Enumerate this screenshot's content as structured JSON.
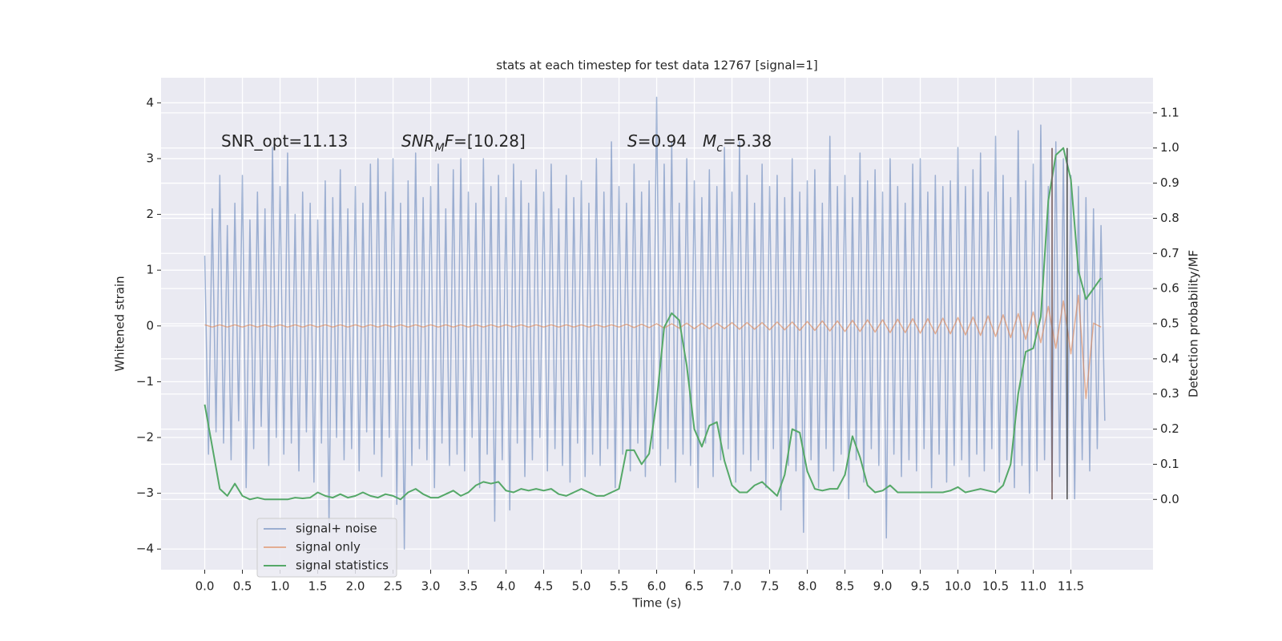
{
  "chart_data": {
    "type": "line",
    "title": "stats at each timestep for test data 12767 [signal=1]",
    "xlabel": "Time (s)",
    "ylabel": "Whitened strain",
    "y2label": "Detection probability/MF",
    "xlim": [
      -0.58,
      12.59
    ],
    "ylim": [
      -4.37,
      4.45
    ],
    "y2lim": [
      -0.2,
      1.2
    ],
    "xticks": [
      {
        "value": 0,
        "label": "0.0"
      },
      0.5,
      {
        "value": 1,
        "label": "1.0"
      },
      1.5,
      {
        "value": 2,
        "label": "2.0"
      },
      2.5,
      {
        "value": 3,
        "label": "3.0"
      },
      3.5,
      {
        "value": 4,
        "label": "4.0"
      },
      4.5,
      {
        "value": 5,
        "label": "5.0"
      },
      5.5,
      {
        "value": 6,
        "label": "6.0"
      },
      6.5,
      {
        "value": 7,
        "label": "7.0"
      },
      7.5,
      {
        "value": 8,
        "label": "8.0"
      },
      8.5,
      {
        "value": 9,
        "label": "9.0"
      },
      9.5,
      {
        "value": 10,
        "label": "10.0"
      },
      10.5,
      {
        "value": 11,
        "label": "11.0"
      },
      11.5
    ],
    "yticks": [
      {
        "value": -4,
        "label": "−4"
      },
      {
        "value": -3,
        "label": "−3"
      },
      {
        "value": -2,
        "label": "−2"
      },
      {
        "value": -1,
        "label": "−1"
      },
      0,
      1,
      2,
      3,
      4
    ],
    "y2ticks": [
      {
        "value": 0,
        "label": "0.0"
      },
      0.1,
      0.2,
      0.3,
      0.4,
      0.5,
      0.6,
      0.7,
      0.8,
      0.9,
      {
        "value": 1,
        "label": "1.0"
      },
      1.1
    ],
    "grid": true,
    "legend": "lower left",
    "annotations": [
      {
        "parts": [
          {
            "t": "SNR_opt=11.13"
          }
        ]
      },
      {
        "parts": [
          {
            "t": "SNR",
            "s": "i"
          },
          {
            "t": "M",
            "s": "sub"
          },
          {
            "t": "F",
            "s": "i"
          },
          {
            "t": "=[10.28]"
          }
        ]
      },
      {
        "parts": [
          {
            "t": "S",
            "s": "i"
          },
          {
            "t": "=0.94"
          }
        ]
      },
      {
        "parts": [
          {
            "t": "M",
            "s": "i"
          },
          {
            "t": "c",
            "s": "sub"
          },
          {
            "t": "=5.38"
          }
        ]
      }
    ],
    "vlines": {
      "x": [
        11.25,
        11.45
      ],
      "ymin": 0,
      "ymax": 1.0,
      "colors": [
        "#7a5f5f",
        "#555555"
      ]
    },
    "series": [
      {
        "name": "signal+ noise",
        "color": "#4c72b0",
        "opacity": 0.5,
        "x": [
          0,
          0.05,
          0.1,
          0.15,
          0.2,
          0.25,
          0.3,
          0.35,
          0.4,
          0.45,
          0.5,
          0.55,
          0.6,
          0.65,
          0.7,
          0.75,
          0.8,
          0.85,
          0.9,
          0.95,
          1,
          1.05,
          1.1,
          1.15,
          1.2,
          1.25,
          1.3,
          1.35,
          1.4,
          1.45,
          1.5,
          1.55,
          1.6,
          1.65,
          1.7,
          1.75,
          1.8,
          1.85,
          1.9,
          1.95,
          2,
          2.05,
          2.1,
          2.15,
          2.2,
          2.25,
          2.3,
          2.35,
          2.4,
          2.45,
          2.5,
          2.55,
          2.6,
          2.65,
          2.7,
          2.75,
          2.8,
          2.85,
          2.9,
          2.95,
          3,
          3.05,
          3.1,
          3.15,
          3.2,
          3.25,
          3.3,
          3.35,
          3.4,
          3.45,
          3.5,
          3.55,
          3.6,
          3.65,
          3.7,
          3.75,
          3.8,
          3.85,
          3.9,
          3.95,
          4,
          4.05,
          4.1,
          4.15,
          4.2,
          4.25,
          4.3,
          4.35,
          4.4,
          4.45,
          4.5,
          4.55,
          4.6,
          4.65,
          4.7,
          4.75,
          4.8,
          4.85,
          4.9,
          4.95,
          5,
          5.05,
          5.1,
          5.15,
          5.2,
          5.25,
          5.3,
          5.35,
          5.4,
          5.45,
          5.5,
          5.55,
          5.6,
          5.65,
          5.7,
          5.75,
          5.8,
          5.85,
          5.9,
          5.95,
          6,
          6.05,
          6.1,
          6.15,
          6.2,
          6.25,
          6.3,
          6.35,
          6.4,
          6.45,
          6.5,
          6.55,
          6.6,
          6.65,
          6.7,
          6.75,
          6.8,
          6.85,
          6.9,
          6.95,
          7,
          7.05,
          7.1,
          7.15,
          7.2,
          7.25,
          7.3,
          7.35,
          7.4,
          7.45,
          7.5,
          7.55,
          7.6,
          7.65,
          7.7,
          7.75,
          7.8,
          7.85,
          7.9,
          7.95,
          8,
          8.05,
          8.1,
          8.15,
          8.2,
          8.25,
          8.3,
          8.35,
          8.4,
          8.45,
          8.5,
          8.55,
          8.6,
          8.65,
          8.7,
          8.75,
          8.8,
          8.85,
          8.9,
          8.95,
          9,
          9.05,
          9.1,
          9.15,
          9.2,
          9.25,
          9.3,
          9.35,
          9.4,
          9.45,
          9.5,
          9.55,
          9.6,
          9.65,
          9.7,
          9.75,
          9.8,
          9.85,
          9.9,
          9.95,
          10,
          10.05,
          10.1,
          10.15,
          10.2,
          10.25,
          10.3,
          10.35,
          10.4,
          10.45,
          10.5,
          10.55,
          10.6,
          10.65,
          10.7,
          10.75,
          10.8,
          10.85,
          10.9,
          10.95,
          11,
          11.05,
          11.1,
          11.15,
          11.2,
          11.25,
          11.3,
          11.35,
          11.4,
          11.45,
          11.5,
          11.55,
          11.6,
          11.65,
          11.7,
          11.75,
          11.8,
          11.85,
          11.9,
          11.95
        ],
        "values": [
          1.26,
          -2.3,
          2.1,
          -1.9,
          2.7,
          -2.1,
          1.8,
          -2.4,
          2.2,
          -1.7,
          2.7,
          -2.9,
          1.9,
          -2.2,
          2.4,
          -1.8,
          2.1,
          -2.5,
          3.2,
          -2.0,
          2.5,
          -2.3,
          3.1,
          -2.1,
          2.0,
          -2.6,
          2.4,
          -1.9,
          2.2,
          -2.8,
          1.9,
          -2.1,
          2.6,
          -3.6,
          2.3,
          -2.0,
          2.8,
          -2.4,
          2.1,
          -2.2,
          2.5,
          -2.6,
          2.2,
          -1.9,
          2.9,
          -2.3,
          3.0,
          -2.7,
          2.4,
          -2.0,
          3.0,
          -3.2,
          2.2,
          -4.0,
          2.6,
          -2.5,
          3.1,
          -2.2,
          2.3,
          -2.4,
          2.5,
          -2.9,
          2.9,
          -2.1,
          2.1,
          -2.5,
          2.8,
          -2.3,
          3.0,
          -2.6,
          2.4,
          -2.0,
          2.2,
          -2.9,
          3.0,
          -2.3,
          2.5,
          -3.5,
          2.7,
          -2.4,
          2.3,
          -3.3,
          2.9,
          -2.1,
          2.6,
          -2.7,
          2.2,
          -2.4,
          2.8,
          -2.0,
          2.4,
          -2.6,
          2.9,
          -2.2,
          2.1,
          -2.5,
          2.7,
          -2.8,
          2.3,
          -2.1,
          2.6,
          -2.7,
          2.2,
          -2.3,
          3.0,
          -2.5,
          2.4,
          -2.2,
          3.3,
          -2.9,
          2.5,
          -2.3,
          2.2,
          -2.6,
          2.9,
          -2.1,
          2.4,
          -2.7,
          2.6,
          -2.2,
          4.1,
          -2.5,
          2.9,
          -2.2,
          3.3,
          -2.8,
          2.2,
          -2.3,
          3.0,
          -2.5,
          2.6,
          -2.9,
          2.3,
          -2.1,
          2.8,
          -2.7,
          2.5,
          -2.4,
          3.2,
          -2.2,
          2.4,
          -2.8,
          3.3,
          -2.3,
          2.7,
          -2.6,
          2.2,
          -2.4,
          2.9,
          -2.9,
          2.5,
          -2.2,
          2.7,
          -3.3,
          2.3,
          -2.5,
          3.0,
          -2.6,
          2.4,
          -3.7,
          2.6,
          -2.4,
          2.8,
          -2.9,
          2.2,
          -2.2,
          3.4,
          -2.6,
          2.5,
          -2.3,
          2.7,
          -3.1,
          2.3,
          -2.4,
          3.1,
          -2.8,
          2.6,
          -2.2,
          2.8,
          -2.5,
          2.4,
          -3.8,
          3.0,
          -2.3,
          2.5,
          -2.7,
          2.2,
          -2.4,
          2.9,
          -2.6,
          3.0,
          -2.2,
          2.4,
          -2.9,
          2.7,
          -2.3,
          2.5,
          -2.8,
          2.6,
          -2.5,
          3.2,
          -2.4,
          2.5,
          -2.7,
          2.8,
          -2.3,
          3.1,
          -2.6,
          2.4,
          -2.2,
          3.4,
          -2.8,
          2.7,
          -2.4,
          2.3,
          -2.9,
          3.5,
          -2.5,
          2.6,
          -3.0,
          2.9,
          -2.6,
          3.6,
          -2.4,
          2.5,
          -2.8,
          3.3,
          -2.7,
          3.0,
          -3.0,
          2.7,
          -3.1,
          2.5,
          -2.4,
          2.3,
          -2.6,
          2.1,
          -2.2,
          1.8,
          -1.7
        ]
      },
      {
        "name": "signal only",
        "color": "#dd8452",
        "opacity": 0.6,
        "x": [
          0,
          0.1,
          0.2,
          0.3,
          0.4,
          0.5,
          0.6,
          0.7,
          0.8,
          0.9,
          1,
          1.1,
          1.2,
          1.3,
          1.4,
          1.5,
          1.6,
          1.7,
          1.8,
          1.9,
          2,
          2.1,
          2.2,
          2.3,
          2.4,
          2.5,
          2.6,
          2.7,
          2.8,
          2.9,
          3,
          3.1,
          3.2,
          3.3,
          3.4,
          3.5,
          3.6,
          3.7,
          3.8,
          3.9,
          4,
          4.1,
          4.2,
          4.3,
          4.4,
          4.5,
          4.6,
          4.7,
          4.8,
          4.9,
          5,
          5.1,
          5.2,
          5.3,
          5.4,
          5.5,
          5.6,
          5.7,
          5.8,
          5.9,
          6,
          6.1,
          6.2,
          6.3,
          6.4,
          6.5,
          6.6,
          6.7,
          6.8,
          6.9,
          7,
          7.1,
          7.2,
          7.3,
          7.4,
          7.5,
          7.6,
          7.7,
          7.8,
          7.9,
          8,
          8.1,
          8.2,
          8.3,
          8.4,
          8.5,
          8.6,
          8.7,
          8.8,
          8.9,
          9,
          9.1,
          9.2,
          9.3,
          9.4,
          9.5,
          9.6,
          9.7,
          9.8,
          9.9,
          10,
          10.1,
          10.2,
          10.3,
          10.4,
          10.5,
          10.6,
          10.7,
          10.8,
          10.9,
          11,
          11.1,
          11.2,
          11.3,
          11.4,
          11.5,
          11.6,
          11.7,
          11.8,
          11.9
        ],
        "values": [
          0.02,
          -0.02,
          0.02,
          -0.02,
          0.02,
          -0.02,
          0.02,
          -0.02,
          0.02,
          -0.02,
          0.02,
          -0.02,
          0.02,
          -0.02,
          0.02,
          -0.02,
          0.02,
          -0.02,
          0.02,
          -0.02,
          0.02,
          -0.02,
          0.02,
          -0.02,
          0.02,
          -0.02,
          0.02,
          -0.02,
          0.02,
          -0.02,
          0.02,
          -0.02,
          0.02,
          -0.02,
          0.02,
          -0.02,
          0.02,
          -0.02,
          0.02,
          -0.02,
          0.02,
          -0.02,
          0.02,
          -0.02,
          0.02,
          -0.02,
          0.02,
          -0.02,
          0.02,
          -0.02,
          0.02,
          -0.02,
          0.02,
          -0.02,
          0.02,
          -0.02,
          0.03,
          -0.03,
          0.03,
          -0.03,
          0.04,
          -0.04,
          0.04,
          -0.04,
          0.05,
          -0.05,
          0.05,
          -0.05,
          0.05,
          -0.05,
          0.06,
          -0.06,
          0.06,
          -0.06,
          0.06,
          -0.07,
          0.07,
          -0.07,
          0.07,
          -0.08,
          0.08,
          -0.08,
          0.09,
          -0.09,
          0.09,
          -0.1,
          0.1,
          -0.1,
          0.11,
          -0.11,
          0.11,
          -0.12,
          0.12,
          -0.12,
          0.13,
          -0.13,
          0.13,
          -0.14,
          0.14,
          -0.14,
          0.15,
          -0.16,
          0.16,
          -0.17,
          0.18,
          -0.19,
          0.2,
          -0.21,
          0.22,
          -0.24,
          0.25,
          -0.3,
          0.35,
          -0.4,
          0.45,
          -0.5,
          0.55,
          -1.3,
          0.05,
          -0.02
        ]
      },
      {
        "name": "signal statistics",
        "color": "#55a868",
        "axis": "y2",
        "x": [
          0,
          0.1,
          0.2,
          0.3,
          0.4,
          0.5,
          0.6,
          0.7,
          0.8,
          0.9,
          1,
          1.1,
          1.2,
          1.3,
          1.4,
          1.5,
          1.6,
          1.7,
          1.8,
          1.9,
          2,
          2.1,
          2.2,
          2.3,
          2.4,
          2.5,
          2.6,
          2.7,
          2.8,
          2.9,
          3,
          3.1,
          3.2,
          3.3,
          3.4,
          3.5,
          3.6,
          3.7,
          3.8,
          3.9,
          4,
          4.1,
          4.2,
          4.3,
          4.4,
          4.5,
          4.6,
          4.7,
          4.8,
          4.9,
          5,
          5.1,
          5.2,
          5.3,
          5.4,
          5.5,
          5.6,
          5.7,
          5.8,
          5.9,
          6,
          6.1,
          6.2,
          6.3,
          6.4,
          6.5,
          6.6,
          6.7,
          6.8,
          6.9,
          7,
          7.1,
          7.2,
          7.3,
          7.4,
          7.5,
          7.6,
          7.7,
          7.8,
          7.9,
          8,
          8.1,
          8.2,
          8.3,
          8.4,
          8.5,
          8.6,
          8.7,
          8.8,
          8.9,
          9,
          9.1,
          9.2,
          9.3,
          9.4,
          9.5,
          9.6,
          9.7,
          9.8,
          9.9,
          10,
          10.1,
          10.2,
          10.3,
          10.4,
          10.5,
          10.6,
          10.7,
          10.8,
          10.9,
          11,
          11.1,
          11.2,
          11.3,
          11.4,
          11.5,
          11.6,
          11.7,
          11.8,
          11.9
        ],
        "values": [
          0.27,
          0.15,
          0.03,
          0.01,
          0.045,
          0.01,
          0.0,
          0.005,
          0.0,
          0.0,
          0.0,
          0.0,
          0.005,
          0.003,
          0.005,
          0.02,
          0.01,
          0.005,
          0.015,
          0.005,
          0.01,
          0.02,
          0.01,
          0.005,
          0.015,
          0.01,
          0.0,
          0.02,
          0.03,
          0.015,
          0.005,
          0.005,
          0.015,
          0.025,
          0.01,
          0.02,
          0.04,
          0.05,
          0.045,
          0.05,
          0.025,
          0.02,
          0.03,
          0.025,
          0.03,
          0.025,
          0.03,
          0.015,
          0.01,
          0.02,
          0.03,
          0.02,
          0.01,
          0.01,
          0.02,
          0.03,
          0.14,
          0.14,
          0.1,
          0.13,
          0.28,
          0.49,
          0.53,
          0.51,
          0.38,
          0.2,
          0.15,
          0.21,
          0.22,
          0.11,
          0.04,
          0.02,
          0.02,
          0.04,
          0.05,
          0.03,
          0.01,
          0.07,
          0.2,
          0.19,
          0.08,
          0.03,
          0.025,
          0.03,
          0.03,
          0.07,
          0.18,
          0.12,
          0.04,
          0.02,
          0.025,
          0.04,
          0.02,
          0.02,
          0.02,
          0.02,
          0.02,
          0.02,
          0.02,
          0.025,
          0.035,
          0.02,
          0.025,
          0.03,
          0.025,
          0.02,
          0.04,
          0.1,
          0.3,
          0.42,
          0.43,
          0.52,
          0.85,
          0.98,
          1.0,
          0.91,
          0.65,
          0.57,
          0.6,
          0.63
        ]
      }
    ]
  }
}
